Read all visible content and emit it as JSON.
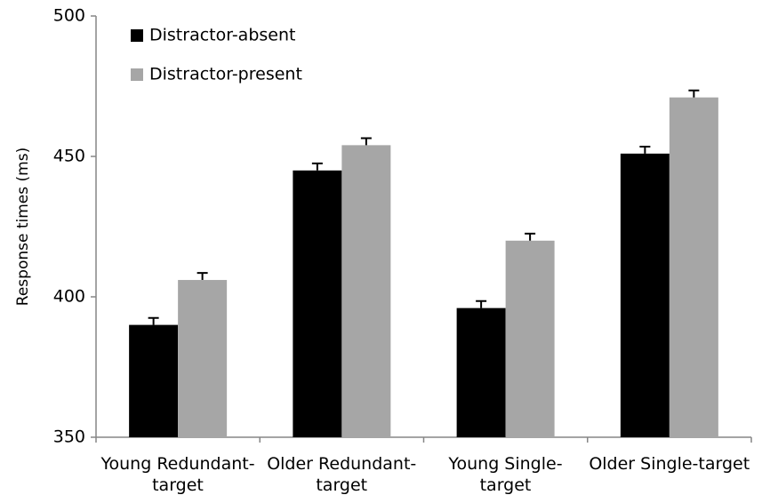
{
  "chart_data": {
    "type": "bar",
    "y_label": "Response times (ms)",
    "categories": [
      "Young Redundant-target",
      "Older Redundant-target",
      "Young Single-target",
      "Older Single-target"
    ],
    "series": [
      {
        "name": "Distractor-absent",
        "color": "#000000",
        "values": [
          390,
          445,
          396,
          451
        ],
        "errors": [
          2.5,
          2.5,
          2.5,
          2.5
        ]
      },
      {
        "name": "Distractor-present",
        "color": "#a6a6a6",
        "values": [
          406,
          454,
          420,
          471
        ],
        "errors": [
          2.5,
          2.5,
          2.5,
          2.5
        ]
      }
    ],
    "ylim": [
      350,
      500
    ],
    "yticks": [
      350,
      400,
      450,
      500
    ],
    "legend": "upper left"
  }
}
